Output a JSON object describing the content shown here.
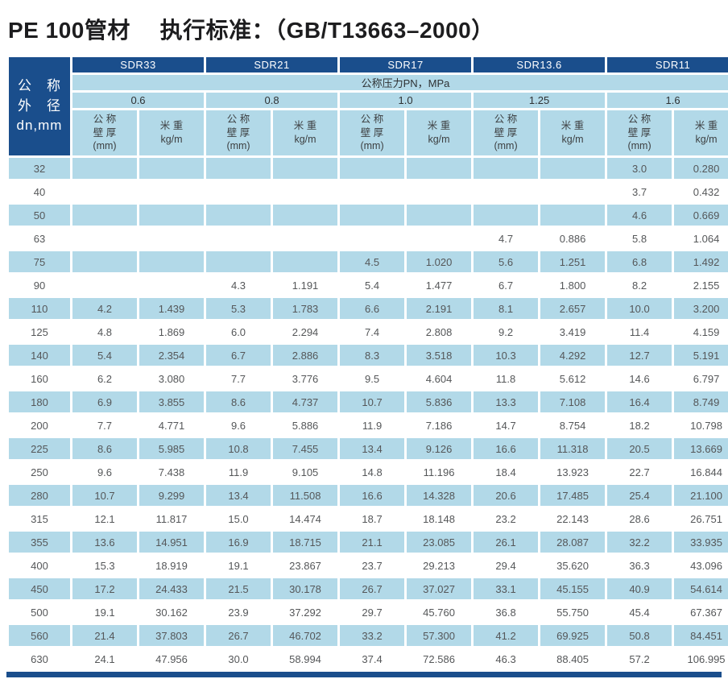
{
  "title": "PE 100管材　 执行标准：（GB/T13663–2000）",
  "table": {
    "corner_lines": [
      "公　称",
      "外　径",
      "dn,mm"
    ],
    "sdr_groups": [
      "SDR33",
      "SDR21",
      "SDR17",
      "SDR13.6",
      "SDR11"
    ],
    "pressure_band_label": "公称压力PN，MPa",
    "pressures": [
      "0.6",
      "0.8",
      "1.0",
      "1.25",
      "1.6"
    ],
    "wall_label": "公 称\n壁 厚\n(mm)",
    "weight_label": "米 重\nkg/m",
    "rows": [
      {
        "dn": "32",
        "values": [
          "",
          "",
          "",
          "",
          "",
          "",
          "",
          "",
          "3.0",
          "0.280"
        ]
      },
      {
        "dn": "40",
        "values": [
          "",
          "",
          "",
          "",
          "",
          "",
          "",
          "",
          "3.7",
          "0.432"
        ]
      },
      {
        "dn": "50",
        "values": [
          "",
          "",
          "",
          "",
          "",
          "",
          "",
          "",
          "4.6",
          "0.669"
        ]
      },
      {
        "dn": "63",
        "values": [
          "",
          "",
          "",
          "",
          "",
          "",
          "4.7",
          "0.886",
          "5.8",
          "1.064"
        ]
      },
      {
        "dn": "75",
        "values": [
          "",
          "",
          "",
          "",
          "4.5",
          "1.020",
          "5.6",
          "1.251",
          "6.8",
          "1.492"
        ]
      },
      {
        "dn": "90",
        "values": [
          "",
          "",
          "4.3",
          "1.191",
          "5.4",
          "1.477",
          "6.7",
          "1.800",
          "8.2",
          "2.155"
        ]
      },
      {
        "dn": "110",
        "values": [
          "4.2",
          "1.439",
          "5.3",
          "1.783",
          "6.6",
          "2.191",
          "8.1",
          "2.657",
          "10.0",
          "3.200"
        ]
      },
      {
        "dn": "125",
        "values": [
          "4.8",
          "1.869",
          "6.0",
          "2.294",
          "7.4",
          "2.808",
          "9.2",
          "3.419",
          "11.4",
          "4.159"
        ]
      },
      {
        "dn": "140",
        "values": [
          "5.4",
          "2.354",
          "6.7",
          "2.886",
          "8.3",
          "3.518",
          "10.3",
          "4.292",
          "12.7",
          "5.191"
        ]
      },
      {
        "dn": "160",
        "values": [
          "6.2",
          "3.080",
          "7.7",
          "3.776",
          "9.5",
          "4.604",
          "11.8",
          "5.612",
          "14.6",
          "6.797"
        ]
      },
      {
        "dn": "180",
        "values": [
          "6.9",
          "3.855",
          "8.6",
          "4.737",
          "10.7",
          "5.836",
          "13.3",
          "7.108",
          "16.4",
          "8.749"
        ]
      },
      {
        "dn": "200",
        "values": [
          "7.7",
          "4.771",
          "9.6",
          "5.886",
          "11.9",
          "7.186",
          "14.7",
          "8.754",
          "18.2",
          "10.798"
        ]
      },
      {
        "dn": "225",
        "values": [
          "8.6",
          "5.985",
          "10.8",
          "7.455",
          "13.4",
          "9.126",
          "16.6",
          "11.318",
          "20.5",
          "13.669"
        ]
      },
      {
        "dn": "250",
        "values": [
          "9.6",
          "7.438",
          "11.9",
          "9.105",
          "14.8",
          "11.196",
          "18.4",
          "13.923",
          "22.7",
          "16.844"
        ]
      },
      {
        "dn": "280",
        "values": [
          "10.7",
          "9.299",
          "13.4",
          "11.508",
          "16.6",
          "14.328",
          "20.6",
          "17.485",
          "25.4",
          "21.100"
        ]
      },
      {
        "dn": "315",
        "values": [
          "12.1",
          "11.817",
          "15.0",
          "14.474",
          "18.7",
          "18.148",
          "23.2",
          "22.143",
          "28.6",
          "26.751"
        ]
      },
      {
        "dn": "355",
        "values": [
          "13.6",
          "14.951",
          "16.9",
          "18.715",
          "21.1",
          "23.085",
          "26.1",
          "28.087",
          "32.2",
          "33.935"
        ]
      },
      {
        "dn": "400",
        "values": [
          "15.3",
          "18.919",
          "19.1",
          "23.867",
          "23.7",
          "29.213",
          "29.4",
          "35.620",
          "36.3",
          "43.096"
        ]
      },
      {
        "dn": "450",
        "values": [
          "17.2",
          "24.433",
          "21.5",
          "30.178",
          "26.7",
          "37.027",
          "33.1",
          "45.155",
          "40.9",
          "54.614"
        ]
      },
      {
        "dn": "500",
        "values": [
          "19.1",
          "30.162",
          "23.9",
          "37.292",
          "29.7",
          "45.760",
          "36.8",
          "55.750",
          "45.4",
          "67.367"
        ]
      },
      {
        "dn": "560",
        "values": [
          "21.4",
          "37.803",
          "26.7",
          "46.702",
          "33.2",
          "57.300",
          "41.2",
          "69.925",
          "50.8",
          "84.451"
        ]
      },
      {
        "dn": "630",
        "values": [
          "24.1",
          "47.956",
          "30.0",
          "58.994",
          "37.4",
          "72.586",
          "46.3",
          "88.405",
          "57.2",
          "106.995"
        ]
      }
    ]
  },
  "colors": {
    "header_blue": "#1a4e8c",
    "cell_blue": "#b2d9e8",
    "data_text": "#555759"
  }
}
